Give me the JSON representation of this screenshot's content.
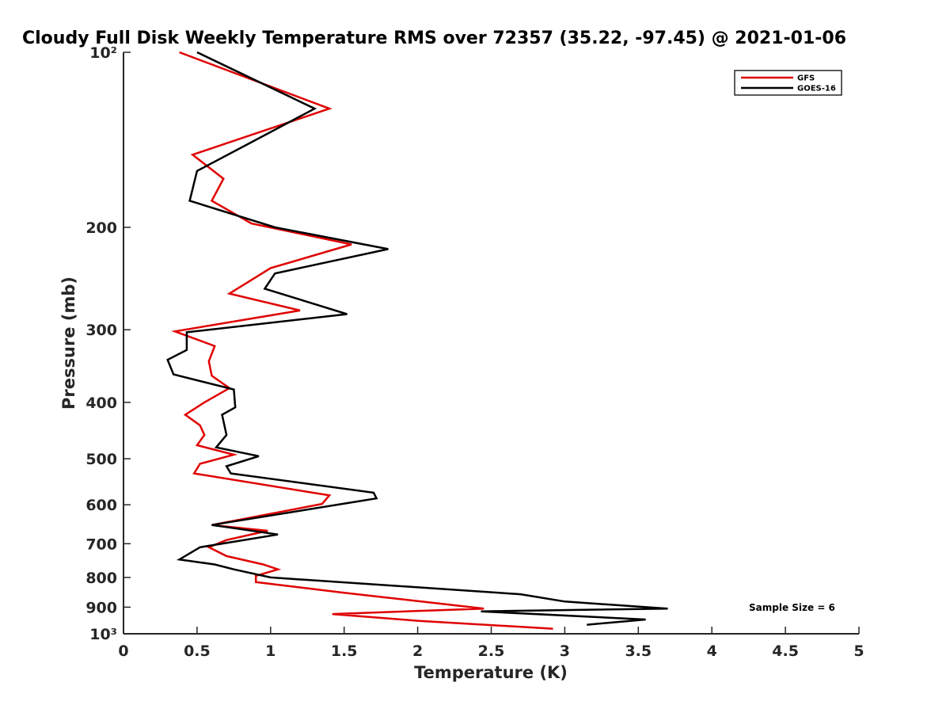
{
  "chart_data": {
    "type": "line",
    "title": "Cloudy Full Disk Weekly Temperature RMS over 72357 (35.22, -97.45) @ 2021-01-06",
    "xlabel": "Temperature (K)",
    "ylabel": "Pressure (mb)",
    "xlim": [
      0,
      5
    ],
    "ylim": [
      100,
      1000
    ],
    "y_scale": "log",
    "y_direction": "reversed",
    "grid": false,
    "legend_position": "top-right",
    "x_ticks": [
      0,
      0.5,
      1,
      1.5,
      2,
      2.5,
      3,
      3.5,
      4,
      4.5,
      5
    ],
    "x_tick_labels": [
      "0",
      "0.5",
      "1",
      "1.5",
      "2",
      "2.5",
      "3",
      "3.5",
      "4",
      "4.5",
      "5"
    ],
    "y_ticks": [
      100,
      200,
      300,
      400,
      500,
      600,
      700,
      800,
      900,
      1000
    ],
    "y_tick_labels": [
      "10²",
      "200",
      "300",
      "400",
      "500",
      "600",
      "700",
      "800",
      "900",
      "10³"
    ],
    "annotation": "Sample Size = 6",
    "series": [
      {
        "name": "GFS",
        "color": "#e00000",
        "points": [
          [
            0.38,
            100
          ],
          [
            1.4,
            125
          ],
          [
            0.47,
            150
          ],
          [
            0.68,
            165
          ],
          [
            0.6,
            180
          ],
          [
            0.87,
            197
          ],
          [
            1.55,
            214
          ],
          [
            1.0,
            235
          ],
          [
            0.72,
            260
          ],
          [
            1.2,
            278
          ],
          [
            0.35,
            302
          ],
          [
            0.62,
            320
          ],
          [
            0.58,
            340
          ],
          [
            0.6,
            360
          ],
          [
            0.72,
            378
          ],
          [
            0.55,
            400
          ],
          [
            0.42,
            420
          ],
          [
            0.52,
            438
          ],
          [
            0.55,
            455
          ],
          [
            0.5,
            474
          ],
          [
            0.75,
            492
          ],
          [
            0.52,
            510
          ],
          [
            0.48,
            530
          ],
          [
            1.4,
            578
          ],
          [
            1.35,
            598
          ],
          [
            0.6,
            650
          ],
          [
            0.98,
            665
          ],
          [
            0.7,
            690
          ],
          [
            0.58,
            710
          ],
          [
            0.7,
            735
          ],
          [
            0.95,
            760
          ],
          [
            1.05,
            775
          ],
          [
            0.9,
            795
          ],
          [
            0.9,
            815
          ],
          [
            1.5,
            850
          ],
          [
            2.45,
            905
          ],
          [
            1.42,
            925
          ],
          [
            2.0,
            950
          ],
          [
            2.92,
            980
          ]
        ]
      },
      {
        "name": "GOES-16",
        "color": "#000000",
        "points": [
          [
            0.5,
            100
          ],
          [
            1.3,
            125
          ],
          [
            0.82,
            145
          ],
          [
            0.5,
            160
          ],
          [
            0.45,
            180
          ],
          [
            1.03,
            200
          ],
          [
            1.8,
            218
          ],
          [
            1.03,
            240
          ],
          [
            0.96,
            255
          ],
          [
            1.52,
            282
          ],
          [
            0.43,
            303
          ],
          [
            0.43,
            325
          ],
          [
            0.3,
            338
          ],
          [
            0.34,
            358
          ],
          [
            0.75,
            380
          ],
          [
            0.76,
            408
          ],
          [
            0.67,
            420
          ],
          [
            0.7,
            455
          ],
          [
            0.63,
            478
          ],
          [
            0.92,
            495
          ],
          [
            0.7,
            515
          ],
          [
            0.73,
            530
          ],
          [
            1.7,
            572
          ],
          [
            1.72,
            585
          ],
          [
            0.6,
            650
          ],
          [
            1.05,
            675
          ],
          [
            0.52,
            710
          ],
          [
            0.38,
            745
          ],
          [
            0.62,
            760
          ],
          [
            0.75,
            775
          ],
          [
            1.0,
            800
          ],
          [
            2.7,
            855
          ],
          [
            3.0,
            880
          ],
          [
            3.7,
            905
          ],
          [
            2.43,
            915
          ],
          [
            3.55,
            945
          ],
          [
            3.15,
            965
          ]
        ]
      }
    ]
  }
}
